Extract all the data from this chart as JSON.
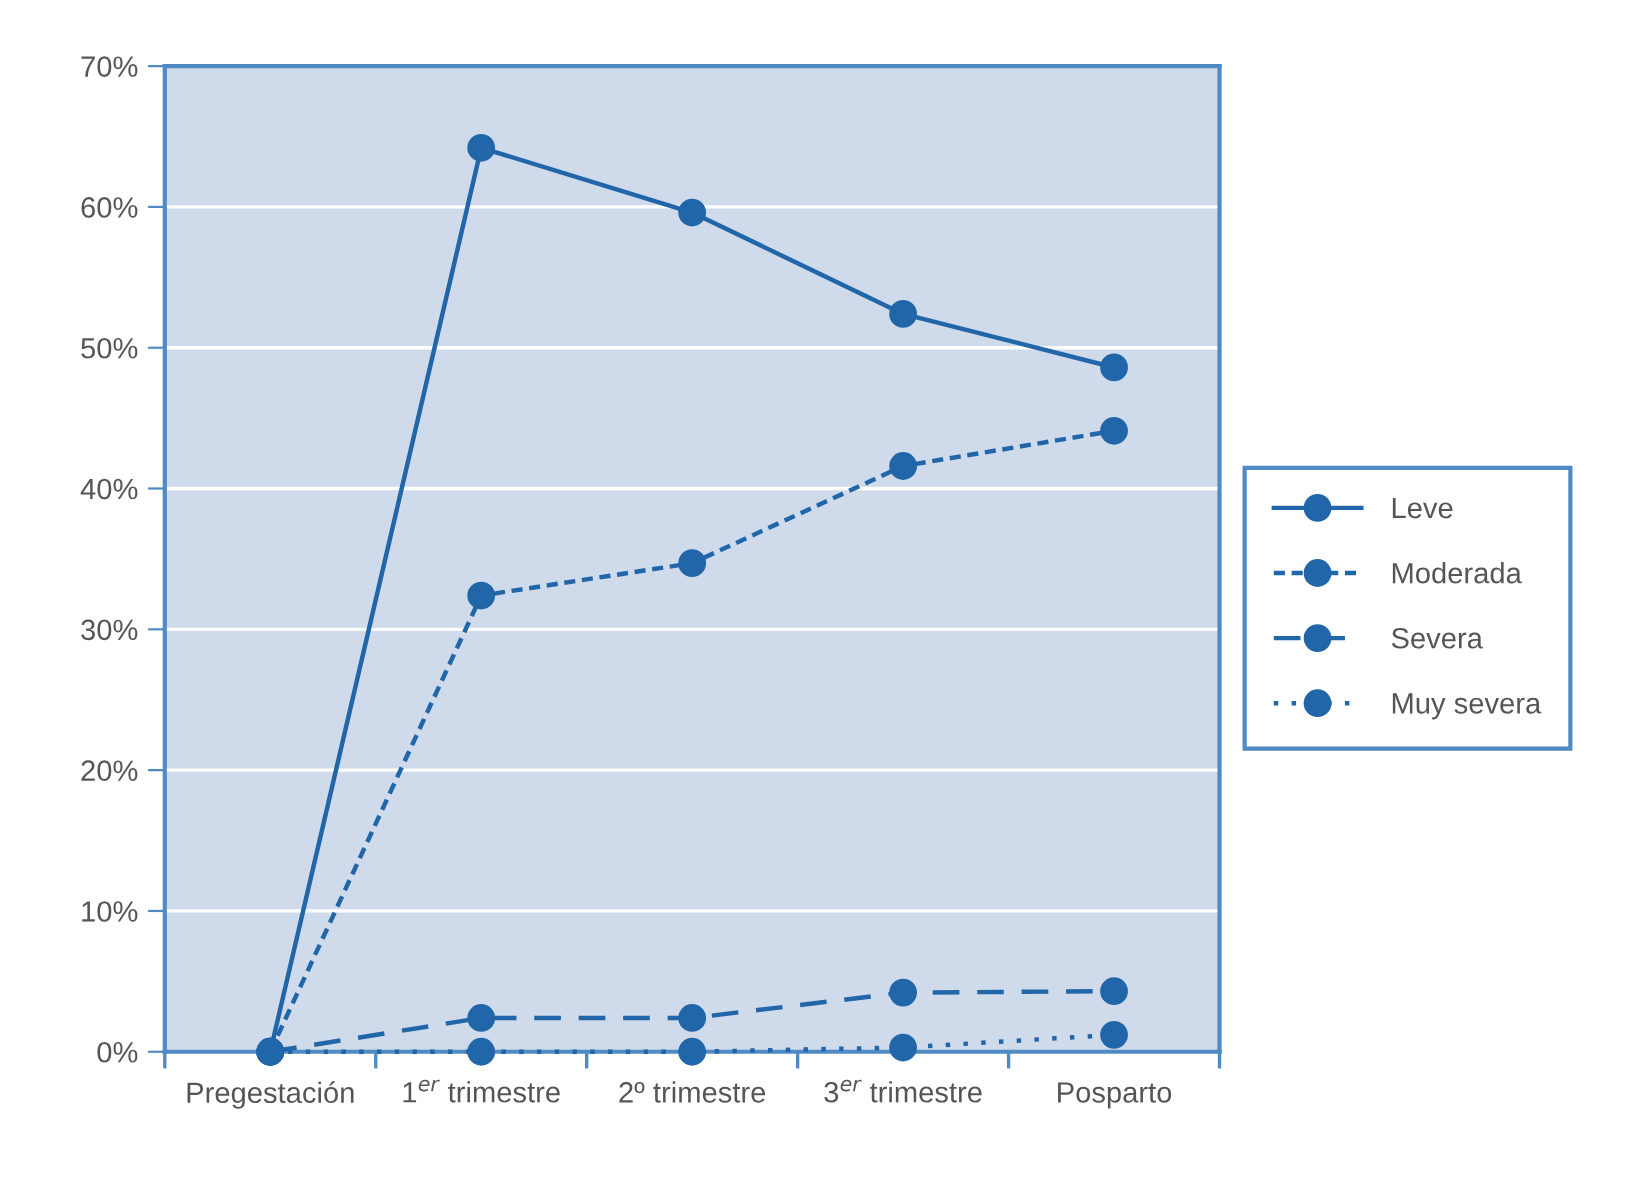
{
  "chart_data": {
    "type": "line",
    "categories": [
      "Pregestación",
      "1$^{er}$ trimestre",
      "2º trimestre",
      "3$^{er}$ trimestre",
      "Posparto"
    ],
    "series": [
      {
        "name": "Leve",
        "color": "#2166a8",
        "line_style": "solid",
        "values": [
          0,
          64.2,
          59.6,
          52.4,
          48.6
        ]
      },
      {
        "name": "Moderada",
        "color": "#2166a8",
        "line_style": "dashed",
        "values": [
          0,
          32.4,
          34.7,
          41.6,
          44.1
        ]
      },
      {
        "name": "Severa",
        "color": "#2166a8",
        "line_style": "dashed",
        "values": [
          0,
          2.4,
          2.4,
          4.2,
          4.3
        ]
      },
      {
        "name": "Muy severa",
        "color": "#2166a8",
        "line_style": "dotted",
        "values": [
          0,
          0,
          0,
          0.3,
          1.2
        ]
      }
    ],
    "ylim": [
      0,
      70
    ],
    "yticks": [
      {
        "value": 0,
        "label": "0%"
      },
      {
        "value": 10,
        "label": "10%"
      },
      {
        "value": 20,
        "label": "20%"
      },
      {
        "value": 30,
        "label": "30%"
      },
      {
        "value": 40,
        "label": "40%"
      },
      {
        "value": 50,
        "label": "50%"
      },
      {
        "value": 60,
        "label": "60%"
      },
      {
        "value": 70,
        "label": "70%"
      }
    ],
    "grid": "y",
    "marker": "circle",
    "legend": "right"
  }
}
